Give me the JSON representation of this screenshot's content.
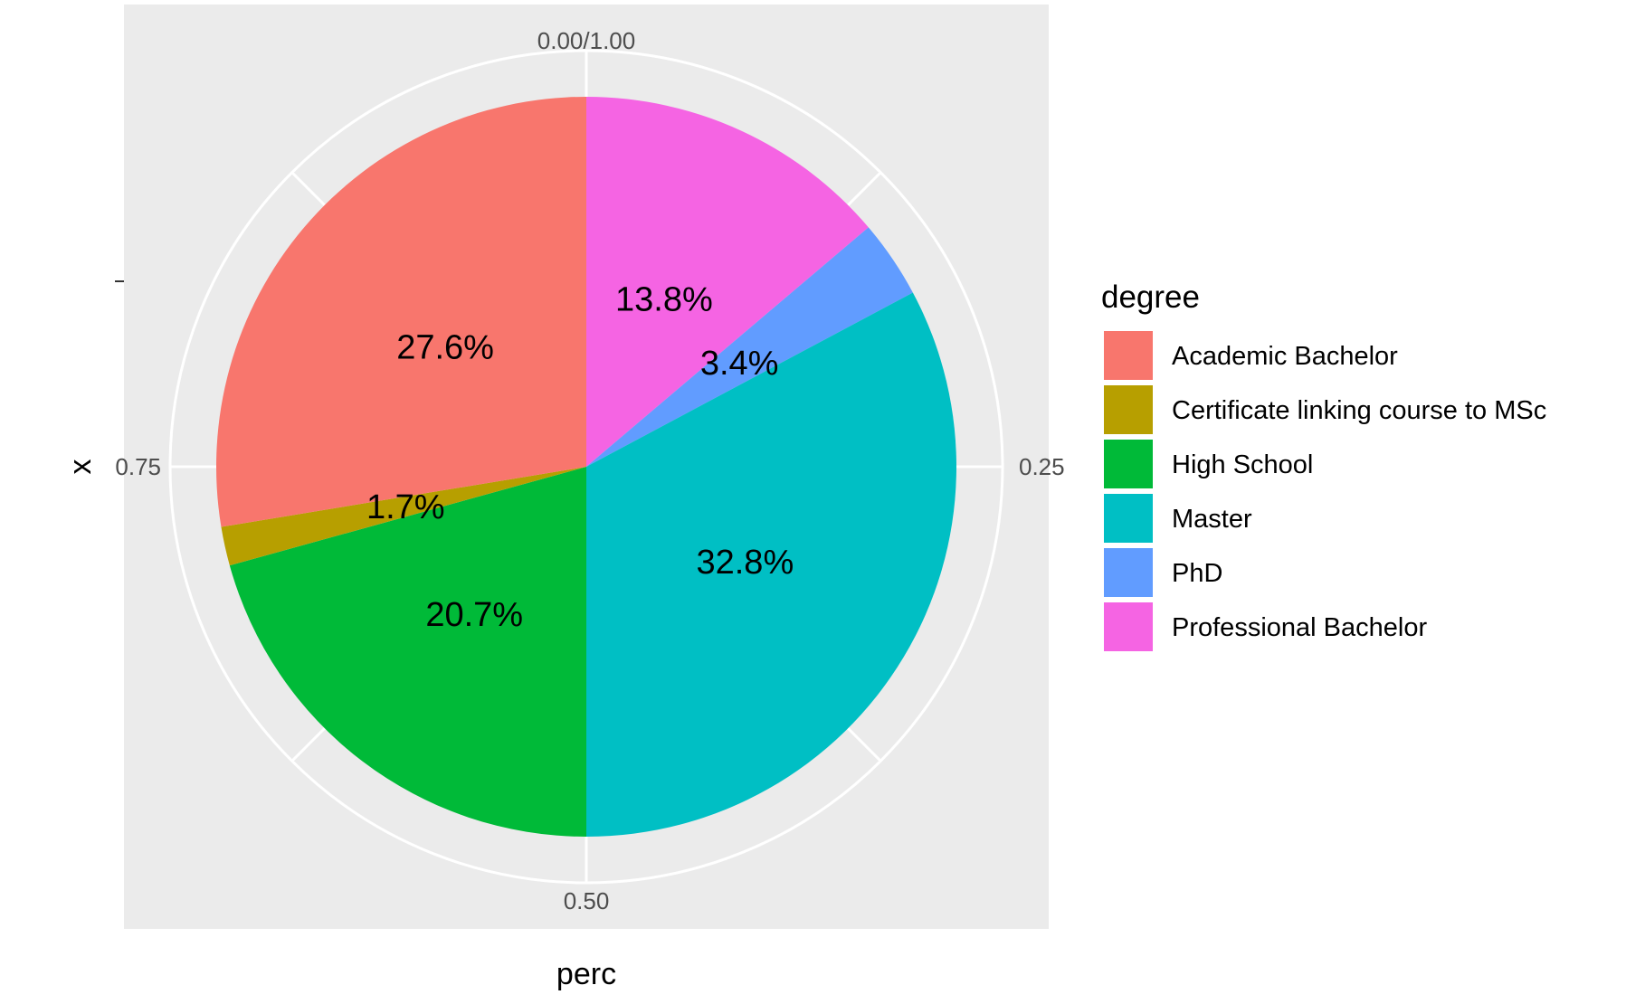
{
  "chart_data": {
    "type": "pie",
    "xlabel": "perc",
    "ylabel": "x",
    "angle_ticks": [
      "0.00/1.00",
      "0.25",
      "0.50",
      "0.75"
    ],
    "angle_tick_values": [
      0,
      0.25,
      0.5,
      0.75
    ],
    "legend": {
      "title": "degree",
      "position": "right"
    },
    "grid": true,
    "slices": [
      {
        "name": "Professional Bachelor",
        "value": 0.138,
        "label": "13.8%",
        "color": "#F564E3"
      },
      {
        "name": "PhD",
        "value": 0.034,
        "label": "3.4%",
        "color": "#619CFF"
      },
      {
        "name": "Master",
        "value": 0.328,
        "label": "32.8%",
        "color": "#00BFC4"
      },
      {
        "name": "High School",
        "value": 0.207,
        "label": "20.7%",
        "color": "#00BA38"
      },
      {
        "name": "Certificate linking course to MSc",
        "value": 0.017,
        "label": "1.7%",
        "color": "#B79F00"
      },
      {
        "name": "Academic Bachelor",
        "value": 0.276,
        "label": "27.6%",
        "color": "#F8766D"
      }
    ],
    "legend_order": [
      "Academic Bachelor",
      "Certificate linking course to MSc",
      "High School",
      "Master",
      "PhD",
      "Professional Bachelor"
    ]
  }
}
